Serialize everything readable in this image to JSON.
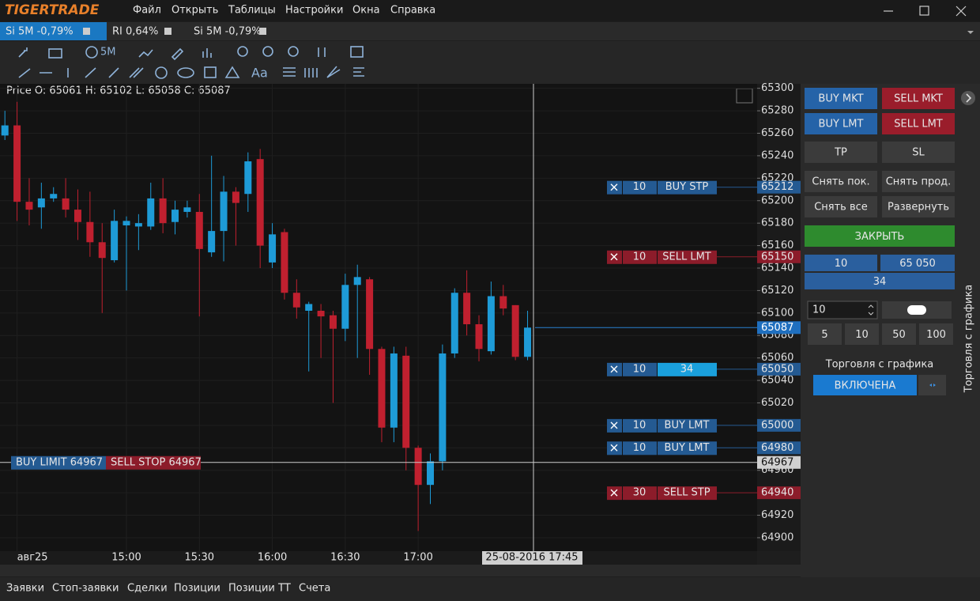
{
  "app": {
    "logo": "TIGERTRADE",
    "menu": [
      "Файл",
      "Открыть",
      "Таблицы",
      "Настройки",
      "Окна",
      "Справка"
    ]
  },
  "tabs": [
    {
      "label": "Si 5M -0,79%",
      "active": true
    },
    {
      "label": "RI 0,64%",
      "active": false
    },
    {
      "label": "Si 5M -0,79%",
      "active": false
    }
  ],
  "toolbar": {
    "timeframe": "5M",
    "text_tool": "Aa"
  },
  "chart_data": {
    "type": "candlestick",
    "legend_text": "Price O: 65061 H: 65102 L: 65058 C: 65087",
    "categories": [
      null,
      "авг25",
      null,
      null,
      null,
      null,
      null,
      null,
      null,
      null,
      "15:00",
      null,
      null,
      null,
      null,
      null,
      "15:30",
      null,
      null,
      null,
      null,
      null,
      "16:00",
      null,
      null,
      null,
      null,
      null,
      "16:30",
      null,
      null,
      null,
      null,
      null,
      "17:00",
      null,
      null,
      null,
      null,
      null,
      null,
      null,
      null,
      null
    ],
    "open": [
      65258,
      65267,
      65199,
      65194,
      65202,
      65202,
      65192,
      65181,
      65163,
      65147,
      65178,
      65177,
      65177,
      65202,
      65181,
      65190,
      65190,
      65154,
      65173,
      65208,
      65206,
      65237,
      65145,
      65172,
      65118,
      65102,
      65102,
      65098,
      65086,
      65125,
      65130,
      65068,
      64998,
      65062,
      64980,
      64947,
      64968,
      65064,
      65118,
      65090,
      65066,
      65115,
      65107,
      65061
    ],
    "high": [
      65280,
      65288,
      65220,
      65216,
      65212,
      65220,
      65210,
      65208,
      65180,
      65192,
      65186,
      65188,
      65216,
      65220,
      65200,
      65200,
      65206,
      65240,
      65222,
      65212,
      65243,
      65246,
      65180,
      65175,
      65130,
      65110,
      65108,
      65102,
      65135,
      65143,
      65132,
      65070,
      65070,
      65070,
      64982,
      64975,
      65072,
      65122,
      65138,
      65098,
      65128,
      65125,
      65107,
      65102
    ],
    "low": [
      65254,
      65182,
      65178,
      65175,
      65199,
      65185,
      65165,
      65150,
      65100,
      65145,
      65120,
      65156,
      65174,
      65171,
      65170,
      65185,
      65097,
      65150,
      65146,
      65160,
      65190,
      65140,
      65140,
      65112,
      65095,
      65048,
      65060,
      65020,
      65075,
      65060,
      65045,
      64985,
      64985,
      64960,
      64906,
      64930,
      64960,
      65060,
      65080,
      65057,
      65063,
      65098,
      65058,
      65058
    ],
    "close": [
      65267,
      65199,
      65192,
      65202,
      65206,
      65192,
      65181,
      65163,
      65149,
      65182,
      65182,
      65180,
      65202,
      65180,
      65192,
      65194,
      65157,
      65173,
      65208,
      65198,
      65235,
      65160,
      65170,
      65118,
      65105,
      65108,
      65097,
      65086,
      65125,
      65132,
      65068,
      64998,
      65064,
      64980,
      64947,
      64968,
      65064,
      65118,
      65090,
      65068,
      65115,
      65104,
      65061,
      65087
    ],
    "up_color": "#1e9bd7",
    "down_color": "#c0202f",
    "ylim": [
      64888,
      65304
    ],
    "yticks": [
      65300,
      65280,
      65260,
      65240,
      65220,
      65200,
      65180,
      65160,
      65140,
      65120,
      65100,
      65080,
      65060,
      65040,
      65020,
      65000,
      64980,
      64960,
      64940,
      64920,
      64900
    ],
    "last_price": 65087,
    "crosshair": {
      "price": 64967,
      "time_label": "25-08-2016 17:45"
    },
    "cursor_labels": [
      {
        "text": "BUY LIMIT 64967",
        "color": "#245a92"
      },
      {
        "text": "SELL STOP 64967",
        "color": "#8c1c2a"
      }
    ],
    "orders": [
      {
        "qty": 10,
        "text": "BUY STP",
        "price": 65212,
        "color": "#245a92"
      },
      {
        "qty": 10,
        "text": "SELL LMT",
        "price": 65150,
        "color": "#8c1c2a"
      },
      {
        "qty": 10,
        "text": 34,
        "price": 65050,
        "color": "#1aa0dc"
      },
      {
        "qty": 10,
        "text": "BUY LMT",
        "price": 65000,
        "color": "#245a92"
      },
      {
        "qty": 10,
        "text": "BUY LMT",
        "price": 64980,
        "color": "#245a92"
      },
      {
        "qty": 30,
        "text": "SELL STP",
        "price": 64940,
        "color": "#8c1c2a"
      }
    ]
  },
  "panel": {
    "buttons": [
      "BUY MKT",
      "SELL MKT",
      "BUY LMT",
      "SELL LMT",
      "TP",
      "SL",
      "Снять пок.",
      "Снять прод.",
      "Снять все",
      "Развернуть"
    ],
    "close": "ЗАКРЫТЬ",
    "qty": "10",
    "price": "65 050",
    "position": "34",
    "input": "10",
    "quick": [
      "5",
      "10",
      "50",
      "100"
    ],
    "chart_trading": "Торговля с графика",
    "toggle": "ВКЛЮЧЕНА",
    "side_label": "Торговля с графика"
  },
  "bottom_tabs": [
    "Заявки",
    "Стоп-заявки",
    "Сделки",
    "Позиции",
    "Позиции ТТ",
    "Счета"
  ]
}
